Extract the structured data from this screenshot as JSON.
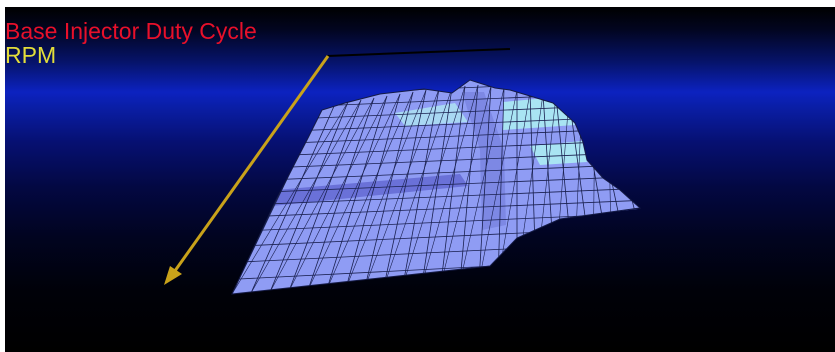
{
  "view": {
    "title": "Base Injector Duty Cycle",
    "axis_label": "RPM",
    "colors": {
      "title": "#e8102a",
      "axis_label": "#e2dd3a",
      "axis_arrow": "#c9a21a",
      "surface": "#8f9cf4",
      "surface_highlight": "#a9e4f3",
      "mesh": "#1a2050"
    }
  }
}
